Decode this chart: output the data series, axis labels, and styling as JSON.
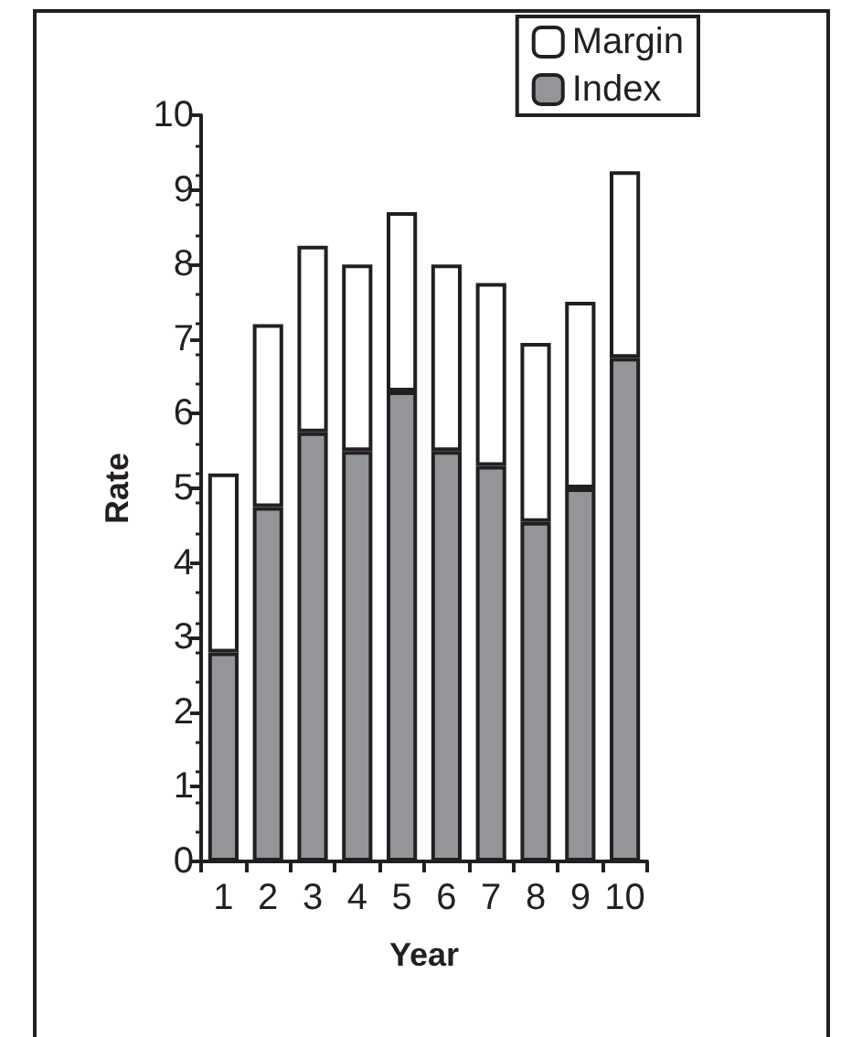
{
  "chart_data": {
    "type": "bar",
    "stacked": true,
    "xlabel": "Year",
    "ylabel": "Rate",
    "categories": [
      "1",
      "2",
      "3",
      "4",
      "5",
      "6",
      "7",
      "8",
      "9",
      "10"
    ],
    "series": [
      {
        "name": "Index",
        "color": "#939598",
        "values": [
          2.8,
          4.75,
          5.75,
          5.5,
          6.3,
          5.5,
          5.3,
          4.55,
          5.0,
          6.75
        ]
      },
      {
        "name": "Margin",
        "color": "#ffffff",
        "values": [
          2.4,
          2.45,
          2.5,
          2.5,
          2.4,
          2.5,
          2.45,
          2.4,
          2.5,
          2.5
        ]
      }
    ],
    "ylim": [
      0,
      10
    ],
    "yticks": [
      0,
      1,
      2,
      3,
      4,
      5,
      6,
      7,
      8,
      9,
      10
    ],
    "grid": false,
    "legend": "top right"
  }
}
